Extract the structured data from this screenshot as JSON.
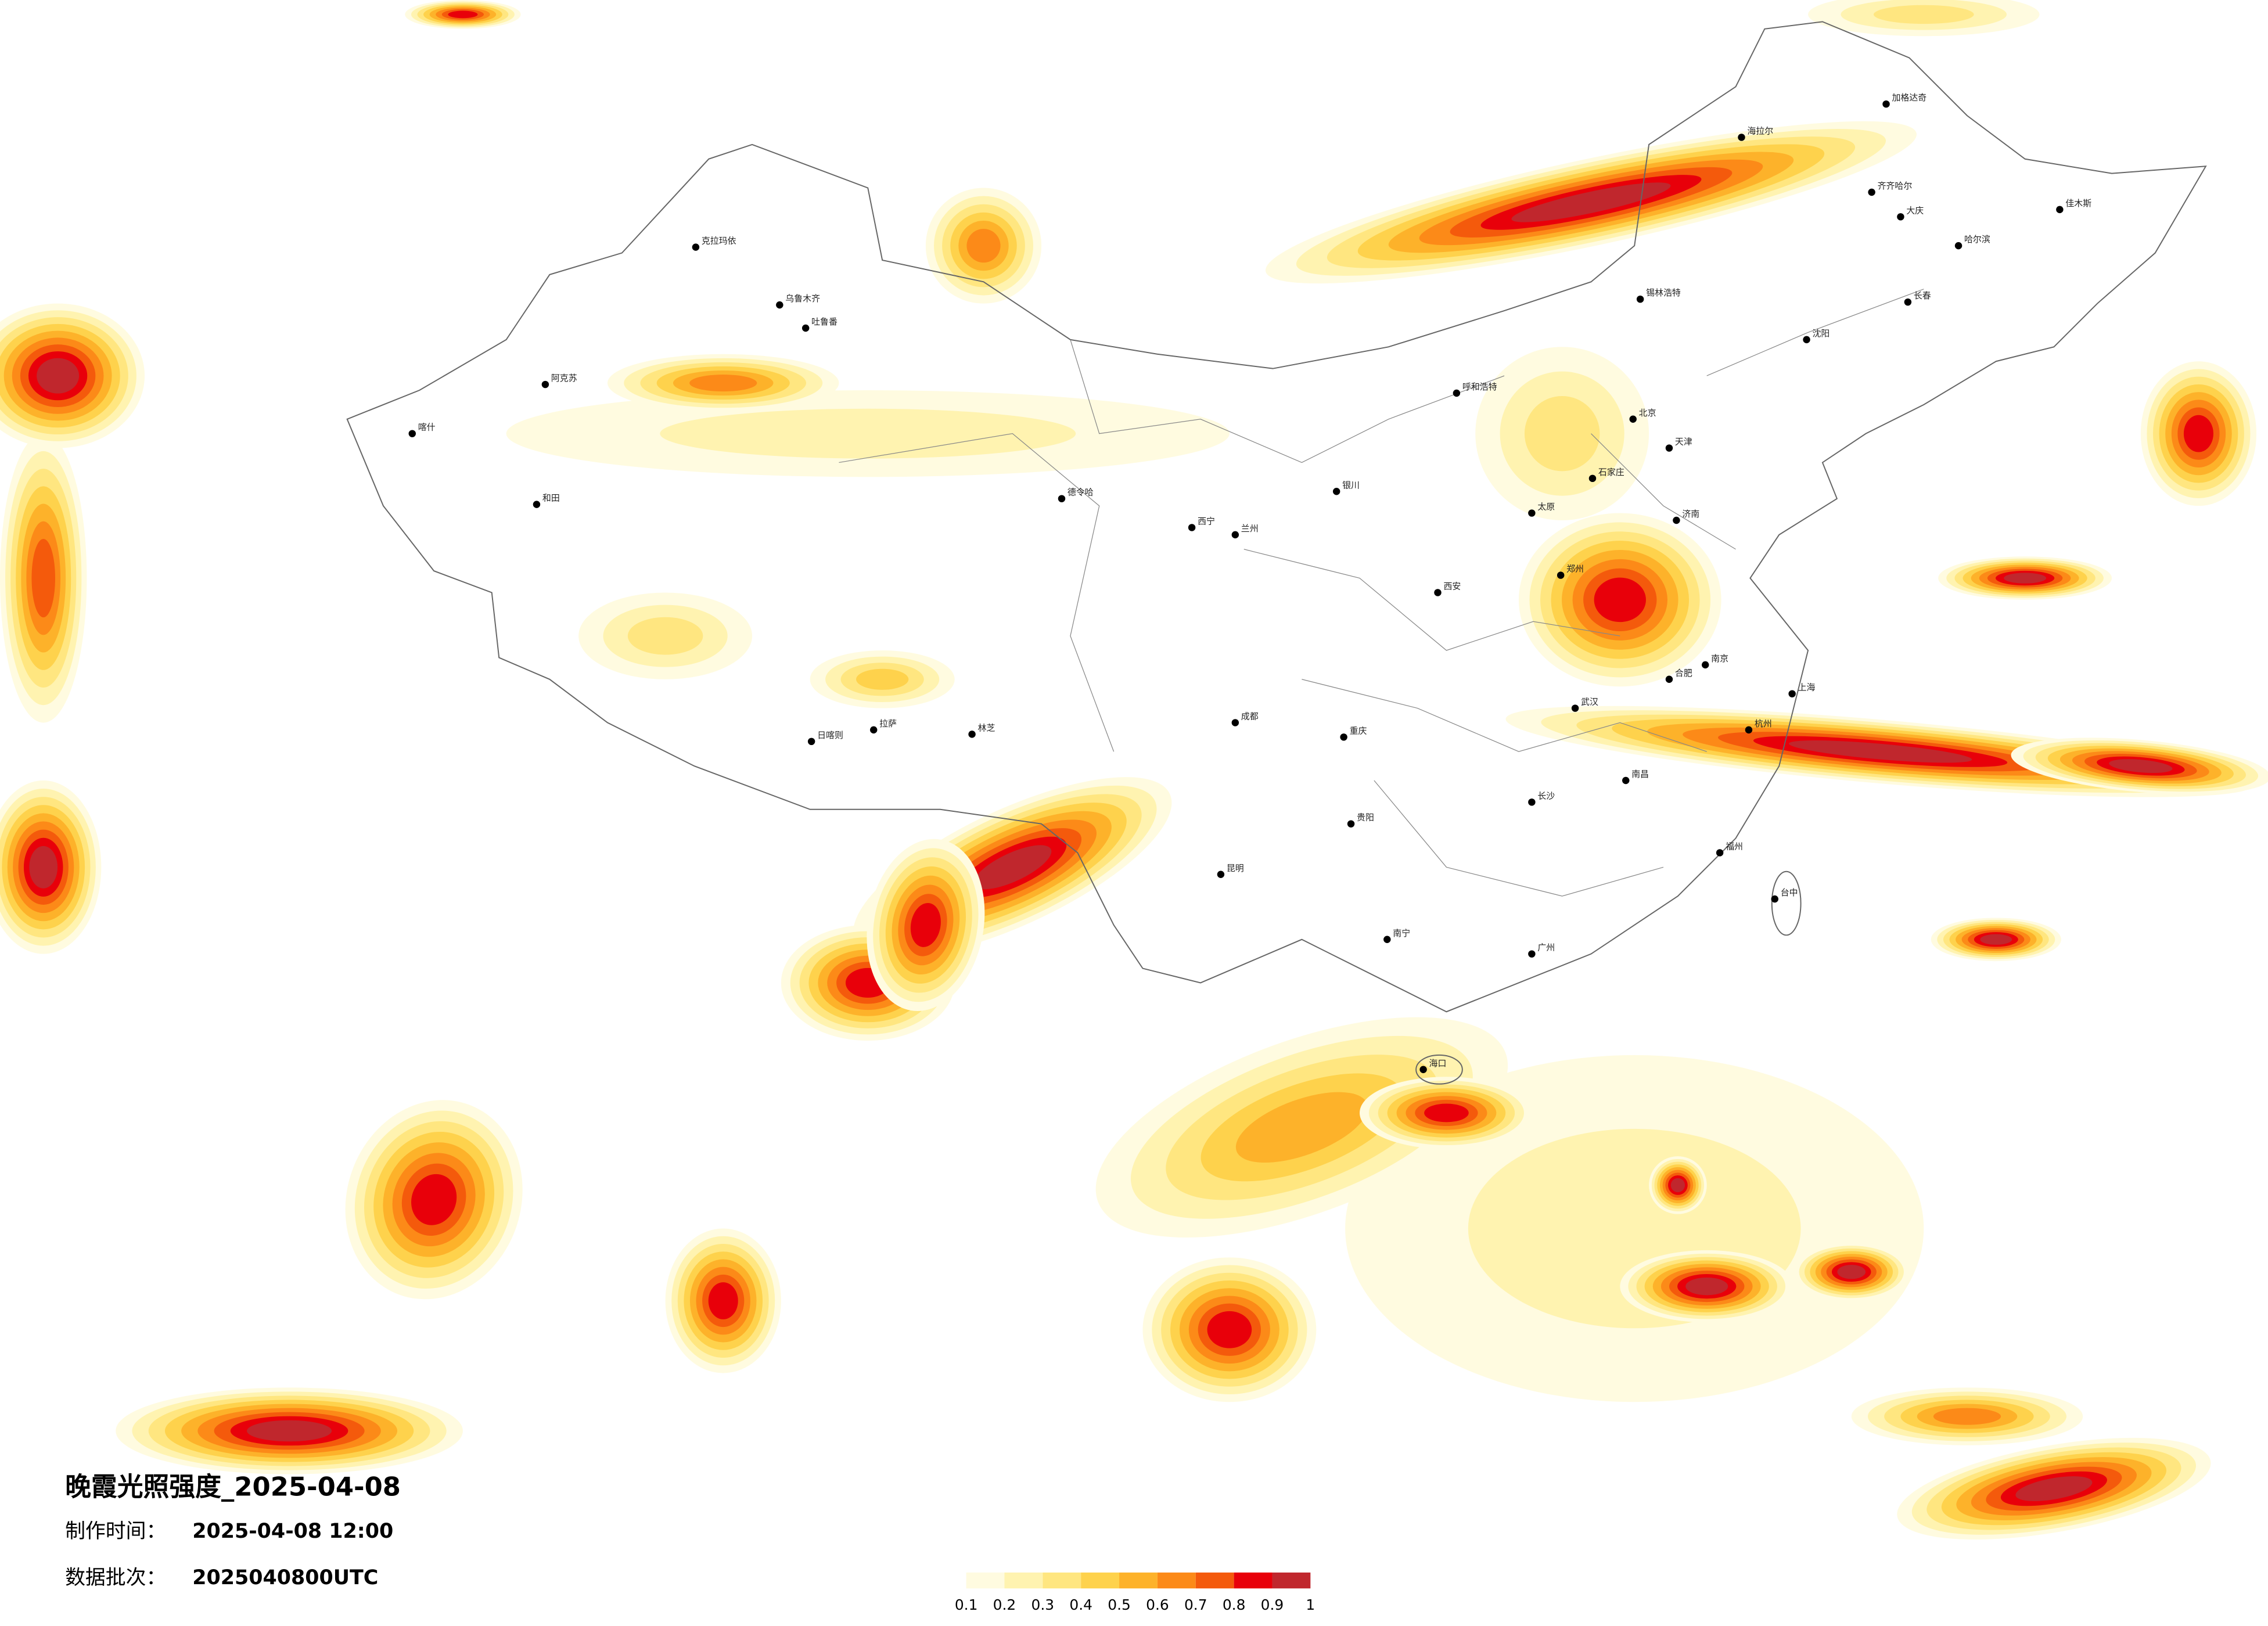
{
  "title": "晚霞光照强度_2025-04-08",
  "made_time_label": "制作时间：",
  "made_time": "2025-04-08 12:00",
  "batch_label": "数据批次：",
  "batch": "2025040800UTC",
  "legend": {
    "colors": [
      "#fffbe0",
      "#fff3b0",
      "#ffe680",
      "#fed24c",
      "#fdb22a",
      "#fc8a18",
      "#f45a0c",
      "#e8000a",
      "#c0272d"
    ],
    "ticks": [
      0.1,
      0.2,
      0.3,
      0.4,
      0.5,
      0.6,
      0.7,
      0.8,
      0.9,
      1
    ]
  },
  "cities": [
    "克拉玛依",
    "乌鲁木齐",
    "吐鲁番",
    "阿克苏",
    "和田",
    "喀什",
    "德令哈",
    "日喀则",
    "拉萨",
    "林芝",
    "呼和浩特",
    "北京",
    "天津",
    "石家庄",
    "太原",
    "济南",
    "郑州",
    "西安",
    "兰州",
    "西宁",
    "银川",
    "成都",
    "重庆",
    "贵阳",
    "昆明",
    "南宁",
    "广州",
    "长沙",
    "武汉",
    "南昌",
    "杭州",
    "上海",
    "南京",
    "合肥",
    "福州",
    "台中",
    "海口",
    "沈阳",
    "长春",
    "哈尔滨",
    "齐齐哈尔",
    "海拉尔",
    "锡林浩特",
    "大庆",
    "加格达奇",
    "佳木斯"
  ]
}
